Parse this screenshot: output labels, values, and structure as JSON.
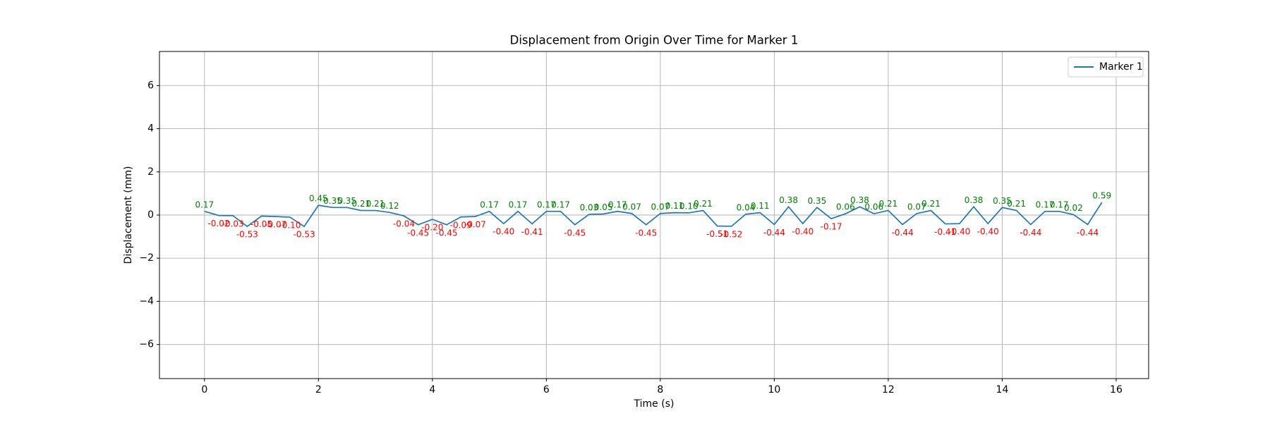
{
  "chart_data": {
    "type": "line",
    "title": "Displacement from Origin Over Time for Marker 1",
    "x_label": "Time (s)",
    "y_label": "Displacement (mm)",
    "x": [
      0,
      0.25,
      0.5,
      0.75,
      1,
      1.25,
      1.5,
      1.75,
      2,
      2.25,
      2.5,
      2.75,
      3,
      3.25,
      3.5,
      3.75,
      4,
      4.25,
      4.5,
      4.75,
      5,
      5.25,
      5.5,
      5.75,
      6,
      6.25,
      6.5,
      6.75,
      7,
      7.25,
      7.5,
      7.75,
      8,
      8.25,
      8.5,
      8.75,
      9,
      9.25,
      9.5,
      9.75,
      10,
      10.25,
      10.5,
      10.75,
      11,
      11.25,
      11.5,
      11.75,
      12,
      12.25,
      12.5,
      12.75,
      13,
      13.25,
      13.5,
      13.75,
      14,
      14.25,
      14.5,
      14.75,
      15,
      15.25,
      15.5,
      15.75
    ],
    "series": [
      {
        "name": "Marker 1",
        "color": "#1f77b4",
        "values": [
          0.17,
          -0.02,
          -0.03,
          -0.53,
          -0.05,
          -0.07,
          -0.1,
          -0.53,
          0.45,
          0.35,
          0.35,
          0.21,
          0.21,
          0.12,
          -0.04,
          -0.45,
          -0.2,
          -0.45,
          -0.09,
          -0.07,
          0.17,
          -0.4,
          0.17,
          -0.41,
          0.17,
          0.17,
          -0.45,
          0.03,
          0.05,
          0.17,
          0.07,
          -0.45,
          0.07,
          0.11,
          0.1,
          0.21,
          -0.51,
          -0.52,
          0.04,
          0.11,
          -0.44,
          0.38,
          -0.4,
          0.35,
          -0.17,
          0.06,
          0.38,
          0.06,
          0.21,
          -0.44,
          0.07,
          0.21,
          -0.41,
          -0.4,
          0.38,
          -0.4,
          0.35,
          0.21,
          -0.44,
          0.17,
          0.17,
          0.02,
          -0.44,
          0.59
        ],
        "value_labels": [
          "0.17",
          "-0.02",
          "-0.03",
          "-0.53",
          "-0.05",
          "-0.07",
          "-0.10",
          "-0.53",
          "0.45",
          "0.35",
          "0.35",
          "0.21",
          "0.21",
          "0.12",
          "-0.04",
          "-0.45",
          "-0.20",
          "-0.45",
          "-0.09",
          "-0.07",
          "0.17",
          "-0.40",
          "0.17",
          "-0.41",
          "0.17",
          "0.17",
          "-0.45",
          "0.03",
          "0.05",
          "0.17",
          "0.07",
          "-0.45",
          "0.07",
          "0.11",
          "0.10",
          "0.21",
          "-0.51",
          "-0.52",
          "0.04",
          "0.11",
          "-0.44",
          "0.38",
          "-0.40",
          "0.35",
          "-0.17",
          "0.06",
          "0.38",
          "0.06",
          "0.21",
          "-0.44",
          "0.07",
          "0.21",
          "-0.41",
          "-0.40",
          "0.38",
          "-0.40",
          "0.35",
          "0.21",
          "-0.44",
          "0.17",
          "0.17",
          "0.02",
          "-0.44",
          "0.59"
        ]
      }
    ],
    "label_colors": {
      "positive": "#008000",
      "negative": "#ff0000"
    },
    "xlim": [
      -0.79,
      16.57
    ],
    "ylim": [
      -7.58,
      7.58
    ],
    "xticks": [
      0,
      2,
      4,
      6,
      8,
      10,
      12,
      14,
      16
    ],
    "yticks": [
      {
        "value": -6,
        "label": "−6"
      },
      {
        "value": -4,
        "label": "−4"
      },
      {
        "value": -2,
        "label": "−2"
      },
      0,
      2,
      4,
      6
    ],
    "grid": true,
    "legend": "upper right"
  }
}
